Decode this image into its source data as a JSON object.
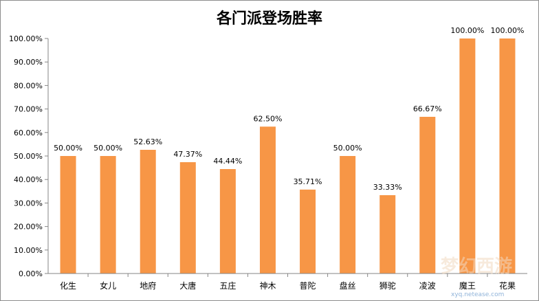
{
  "chart_data": {
    "type": "bar",
    "title": "各门派登场胜率",
    "categories": [
      "化生",
      "女儿",
      "地府",
      "大唐",
      "五庄",
      "神木",
      "普陀",
      "盘丝",
      "狮驼",
      "凌波",
      "魔王",
      "花果"
    ],
    "values": [
      50.0,
      50.0,
      52.63,
      47.37,
      44.44,
      62.5,
      35.71,
      50.0,
      33.33,
      66.67,
      100.0,
      100.0
    ],
    "data_labels": [
      "50.00%",
      "50.00%",
      "52.63%",
      "47.37%",
      "44.44%",
      "62.50%",
      "35.71%",
      "50.00%",
      "33.33%",
      "66.67%",
      "100.00%",
      "100.00%"
    ],
    "ylim": [
      0,
      100
    ],
    "yticks": [
      0,
      10,
      20,
      30,
      40,
      50,
      60,
      70,
      80,
      90,
      100
    ],
    "ytick_labels": [
      "0.00%",
      "10.00%",
      "20.00%",
      "30.00%",
      "40.00%",
      "50.00%",
      "60.00%",
      "70.00%",
      "80.00%",
      "90.00%",
      "100.00%"
    ],
    "xlabel": "",
    "ylabel": "",
    "grid": false,
    "legend": "none",
    "bar_color": "#f79646"
  },
  "watermark": {
    "logo_text": "梦幻西游",
    "url": "xyq.netease.com"
  }
}
